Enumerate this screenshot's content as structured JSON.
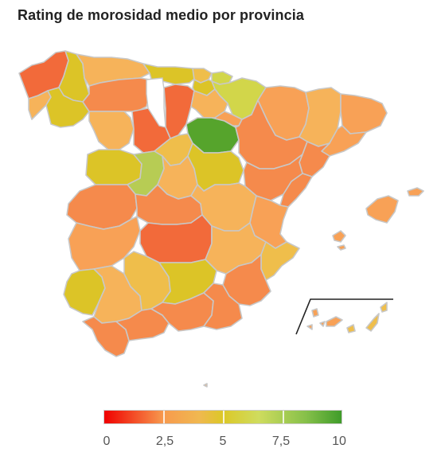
{
  "title": "Rating de morosidad medio por provincia",
  "legend": {
    "min": 0,
    "max": 10,
    "ticks": [
      {
        "value": 0,
        "label": "0"
      },
      {
        "value": 2.5,
        "label": "2,5"
      },
      {
        "value": 5,
        "label": "5"
      },
      {
        "value": 7.5,
        "label": "7,5"
      },
      {
        "value": 10,
        "label": "10"
      }
    ],
    "color_stops": [
      {
        "value": 0,
        "color": "#f00000"
      },
      {
        "value": 2.5,
        "color": "#f79a4e"
      },
      {
        "value": 4,
        "color": "#f0b850"
      },
      {
        "value": 5,
        "color": "#dcc827"
      },
      {
        "value": 6.5,
        "color": "#cfdc5e"
      },
      {
        "value": 8.5,
        "color": "#86c04a"
      },
      {
        "value": 10,
        "color": "#3f9c2a"
      }
    ]
  },
  "palette": {
    "orange_red": "#f26a3a",
    "orange": "#f58a4c",
    "light_orange": "#f8a156",
    "sand": "#f6b35a",
    "yellow_orange": "#efbe4b",
    "mustard": "#dcc427",
    "yellow_green": "#d2d64a",
    "light_green": "#b7cc54",
    "green": "#56a42c",
    "border": "#c8c8c8"
  }
}
